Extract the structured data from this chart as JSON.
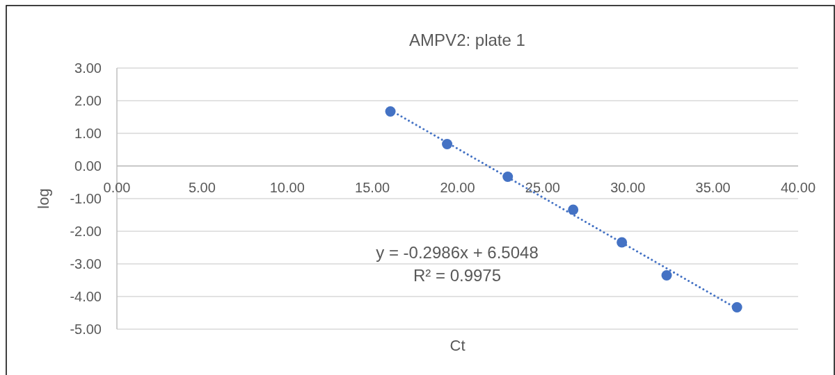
{
  "chart_data": {
    "type": "scatter",
    "title": "AMPV2: plate 1",
    "xlabel": "Ct",
    "ylabel": "log",
    "xlim": [
      0,
      40
    ],
    "xticks": [
      {
        "value": 0,
        "label": "0.00"
      },
      {
        "value": 5,
        "label": "5.00"
      },
      {
        "value": 10,
        "label": "10.00"
      },
      {
        "value": 15,
        "label": "15.00"
      },
      {
        "value": 20,
        "label": "20.00"
      },
      {
        "value": 25,
        "label": "25.00"
      },
      {
        "value": 30,
        "label": "30.00"
      },
      {
        "value": 35,
        "label": "35.00"
      },
      {
        "value": 40,
        "label": "40.00"
      }
    ],
    "ylim": [
      -5,
      3
    ],
    "yticks": [
      {
        "value": -5,
        "label": "-5.00"
      },
      {
        "value": -4,
        "label": "-4.00"
      },
      {
        "value": -3,
        "label": "-3.00"
      },
      {
        "value": -2,
        "label": "-2.00"
      },
      {
        "value": -1,
        "label": "-1.00"
      },
      {
        "value": 0,
        "label": "0.00"
      },
      {
        "value": 1,
        "label": "1.00"
      },
      {
        "value": 2,
        "label": "2.00"
      },
      {
        "value": 3,
        "label": "3.00"
      }
    ],
    "grid": "y",
    "annotations": [
      "y = -0.2986x + 6.5048",
      "R² = 0.9975"
    ],
    "series": [
      {
        "type": "line",
        "color": "#4472c4",
        "line_style": "dotted",
        "marker": "none",
        "x": [
          16.06,
          36.41
        ],
        "values": [
          1.71,
          -4.37
        ]
      },
      {
        "color": "#4472c4",
        "marker": "circle",
        "x": [
          16.06,
          19.39,
          22.95,
          26.79,
          29.65,
          32.28,
          36.41
        ],
        "values": [
          1.67,
          0.67,
          -0.33,
          -1.34,
          -2.34,
          -3.35,
          -4.33
        ]
      }
    ]
  }
}
